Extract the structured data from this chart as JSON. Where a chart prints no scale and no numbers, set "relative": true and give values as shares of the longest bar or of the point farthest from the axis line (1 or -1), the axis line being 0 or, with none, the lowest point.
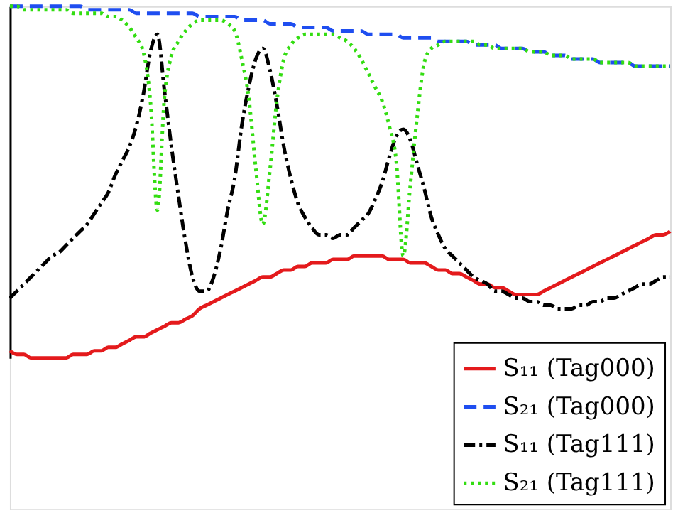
{
  "chart_data": {
    "type": "line",
    "relative": true,
    "grid": false,
    "legend": "bottom right",
    "marker": "none",
    "categories": [
      null,
      null,
      null,
      null,
      null,
      null,
      null,
      null,
      null,
      null,
      null,
      null,
      null,
      null,
      null,
      null,
      null,
      null,
      null,
      null,
      null,
      null,
      null,
      null,
      null,
      null,
      null,
      null,
      null,
      null,
      null,
      null,
      null,
      null,
      null,
      null,
      null,
      null,
      null,
      null,
      null,
      null,
      null,
      null,
      null,
      null,
      null,
      null,
      null,
      null,
      null,
      null,
      null,
      null,
      null,
      null,
      null,
      null,
      null,
      null,
      null,
      null,
      null,
      null,
      null,
      null,
      null,
      null,
      null,
      null,
      null,
      null,
      null,
      null,
      null,
      null,
      null,
      null,
      null,
      null,
      null,
      null,
      null,
      null,
      null,
      null,
      null,
      null,
      null,
      null,
      null,
      null,
      null,
      null,
      null
    ],
    "series": [
      {
        "name": "S₁₁ (Tag000)",
        "color": "#e41a1c",
        "line_style": "solid",
        "values": [
          0.02,
          0.01,
          0.01,
          0.0,
          0.0,
          0.0,
          0.0,
          0.0,
          0.0,
          0.01,
          0.01,
          0.01,
          0.02,
          0.02,
          0.03,
          0.03,
          0.04,
          0.05,
          0.06,
          0.06,
          0.07,
          0.08,
          0.09,
          0.1,
          0.1,
          0.11,
          0.12,
          0.14,
          0.15,
          0.16,
          0.17,
          0.18,
          0.19,
          0.2,
          0.21,
          0.22,
          0.23,
          0.23,
          0.24,
          0.25,
          0.25,
          0.26,
          0.26,
          0.27,
          0.27,
          0.27,
          0.28,
          0.28,
          0.28,
          0.29,
          0.29,
          0.29,
          0.29,
          0.29,
          0.28,
          0.28,
          0.28,
          0.27,
          0.27,
          0.27,
          0.26,
          0.25,
          0.25,
          0.24,
          0.24,
          0.23,
          0.22,
          0.21,
          0.21,
          0.2,
          0.2,
          0.19,
          0.18,
          0.18,
          0.18,
          0.18,
          0.19,
          0.2,
          0.21,
          0.22,
          0.23,
          0.24,
          0.25,
          0.26,
          0.27,
          0.28,
          0.29,
          0.3,
          0.31,
          0.32,
          0.33,
          0.34,
          0.35,
          0.35,
          0.36
        ]
      },
      {
        "name": "S₂₁ (Tag000)",
        "color": "#1f4ef0",
        "line_style": "dashed",
        "values": [
          1.0,
          1.0,
          1.0,
          1.0,
          1.0,
          1.0,
          1.0,
          1.0,
          1.0,
          1.0,
          1.0,
          0.99,
          0.99,
          0.99,
          0.99,
          0.99,
          0.99,
          0.99,
          0.98,
          0.98,
          0.98,
          0.98,
          0.98,
          0.98,
          0.98,
          0.98,
          0.98,
          0.97,
          0.97,
          0.97,
          0.97,
          0.97,
          0.97,
          0.96,
          0.96,
          0.96,
          0.96,
          0.95,
          0.95,
          0.95,
          0.95,
          0.94,
          0.94,
          0.94,
          0.94,
          0.94,
          0.93,
          0.93,
          0.93,
          0.93,
          0.93,
          0.92,
          0.92,
          0.92,
          0.92,
          0.92,
          0.91,
          0.91,
          0.91,
          0.91,
          0.91,
          0.9,
          0.9,
          0.9,
          0.9,
          0.9,
          0.89,
          0.89,
          0.89,
          0.89,
          0.88,
          0.88,
          0.88,
          0.88,
          0.87,
          0.87,
          0.87,
          0.86,
          0.86,
          0.86,
          0.85,
          0.85,
          0.85,
          0.85,
          0.84,
          0.84,
          0.84,
          0.84,
          0.84,
          0.83,
          0.83,
          0.83,
          0.83,
          0.83,
          0.83
        ]
      },
      {
        "name": "S₁₁ (Tag111)",
        "color": "#000000",
        "line_style": "dashdot",
        "values": [
          0.17,
          0.19,
          0.21,
          0.23,
          0.25,
          0.27,
          0.29,
          0.3,
          0.32,
          0.34,
          0.36,
          0.38,
          0.41,
          0.44,
          0.47,
          0.52,
          0.56,
          0.6,
          0.66,
          0.75,
          0.87,
          0.92,
          0.76,
          0.6,
          0.46,
          0.33,
          0.23,
          0.19,
          0.19,
          0.23,
          0.31,
          0.42,
          0.51,
          0.66,
          0.77,
          0.85,
          0.88,
          0.82,
          0.72,
          0.6,
          0.51,
          0.44,
          0.4,
          0.37,
          0.35,
          0.35,
          0.34,
          0.35,
          0.35,
          0.37,
          0.39,
          0.41,
          0.45,
          0.5,
          0.57,
          0.63,
          0.65,
          0.62,
          0.55,
          0.48,
          0.4,
          0.35,
          0.31,
          0.29,
          0.27,
          0.25,
          0.23,
          0.22,
          0.21,
          0.19,
          0.19,
          0.18,
          0.17,
          0.17,
          0.16,
          0.16,
          0.15,
          0.15,
          0.14,
          0.14,
          0.14,
          0.15,
          0.15,
          0.16,
          0.16,
          0.17,
          0.17,
          0.18,
          0.19,
          0.2,
          0.21,
          0.21,
          0.22,
          0.23,
          0.23
        ]
      },
      {
        "name": "S₂₁ (Tag111)",
        "color": "#33dd11",
        "line_style": "dotted",
        "values": [
          1.0,
          1.0,
          0.99,
          0.99,
          0.99,
          0.99,
          0.99,
          0.99,
          0.99,
          0.98,
          0.98,
          0.98,
          0.98,
          0.98,
          0.97,
          0.97,
          0.96,
          0.94,
          0.91,
          0.87,
          0.73,
          0.42,
          0.74,
          0.86,
          0.9,
          0.93,
          0.95,
          0.96,
          0.96,
          0.96,
          0.96,
          0.95,
          0.93,
          0.85,
          0.74,
          0.54,
          0.38,
          0.53,
          0.73,
          0.85,
          0.89,
          0.91,
          0.92,
          0.92,
          0.92,
          0.92,
          0.92,
          0.91,
          0.9,
          0.88,
          0.85,
          0.81,
          0.77,
          0.73,
          0.66,
          0.56,
          0.29,
          0.49,
          0.69,
          0.84,
          0.88,
          0.89,
          0.9,
          0.9,
          0.9,
          0.9,
          0.9,
          0.89,
          0.89,
          0.88,
          0.88,
          0.88,
          0.88,
          0.88,
          0.87,
          0.87,
          0.87,
          0.86,
          0.86,
          0.86,
          0.85,
          0.85,
          0.85,
          0.85,
          0.84,
          0.84,
          0.84,
          0.84,
          0.84,
          0.83,
          0.83,
          0.83,
          0.83,
          0.83,
          0.83
        ]
      }
    ]
  }
}
